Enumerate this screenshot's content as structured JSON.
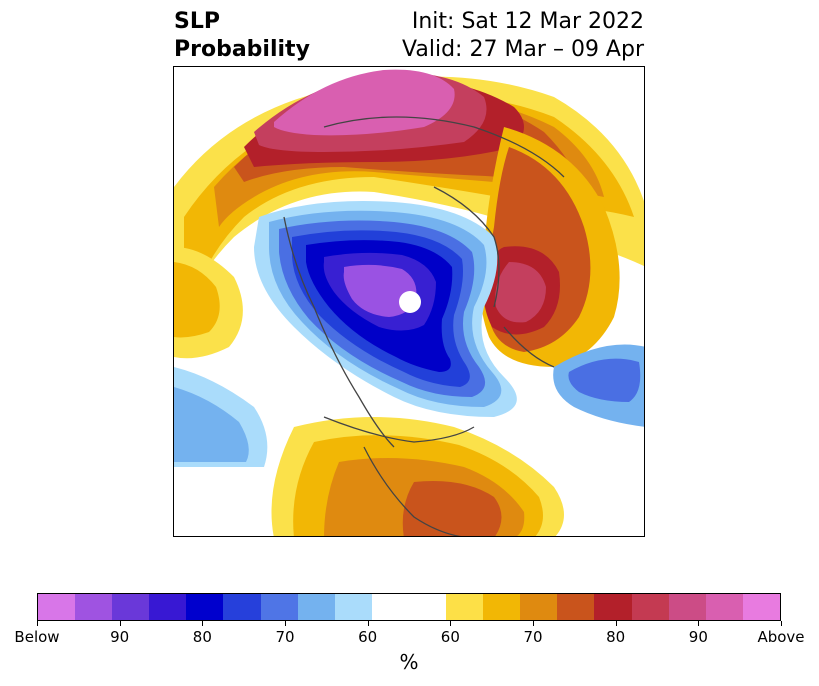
{
  "header": {
    "title_line1": "SLP",
    "title_line2": "Probability",
    "init_text": "Init: Sat 12 Mar 2022",
    "valid_text": "Valid: 27 Mar – 09 Apr"
  },
  "map": {
    "colors": {
      "above_high": "#e070d8",
      "above_mid": "#c43f5e",
      "above_red": "#b3202a",
      "above_orange": "#c9541c",
      "above_amber": "#df8a10",
      "above_gold": "#f2b705",
      "above_yellow": "#fbe14a",
      "below_light": "#aadcfb",
      "below_sky": "#74b2ef",
      "below_mid": "#4a6fe3",
      "below_royal": "#2240d9",
      "below_deep": "#0000c8",
      "below_indigo": "#3820d2",
      "below_violet": "#9a52e3",
      "coast": "#444444"
    }
  },
  "colorbar": {
    "colors": [
      "#d876e8",
      "#9f53e1",
      "#6a38d9",
      "#3818d3",
      "#0000cd",
      "#2640db",
      "#4f75e6",
      "#74b2ef",
      "#aadcfb",
      "#ffffff",
      "#ffffff",
      "#fde047",
      "#f2b705",
      "#df8a10",
      "#c9541c",
      "#b3202a",
      "#c43a52",
      "#cc4c86",
      "#d95fb0",
      "#e87be0"
    ],
    "tick_labels": [
      "Below",
      "90",
      "80",
      "70",
      "60",
      "60",
      "70",
      "80",
      "90",
      "Above"
    ],
    "unit": "%"
  }
}
